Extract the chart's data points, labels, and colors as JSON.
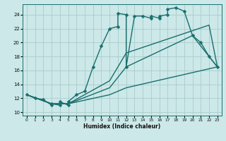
{
  "xlabel": "Humidex (Indice chaleur)",
  "bg_color": "#cce8e8",
  "line_color": "#1a6e6e",
  "grid_color": "#aacccc",
  "xlim": [
    -0.5,
    23.5
  ],
  "ylim": [
    9.5,
    25.5
  ],
  "xticks": [
    0,
    1,
    2,
    3,
    4,
    5,
    6,
    7,
    8,
    9,
    10,
    11,
    12,
    13,
    14,
    15,
    16,
    17,
    18,
    19,
    20,
    21,
    22,
    23
  ],
  "yticks": [
    10,
    12,
    14,
    16,
    18,
    20,
    22,
    24
  ],
  "series1_x": [
    0,
    1,
    2,
    3,
    3,
    4,
    4,
    5,
    5,
    6,
    7,
    8,
    9,
    10,
    11,
    11,
    12,
    12,
    13,
    14,
    15,
    15,
    16,
    16,
    17,
    17,
    18,
    19,
    20,
    21,
    22,
    23
  ],
  "series1_y": [
    12.5,
    12.0,
    11.8,
    11.0,
    11.2,
    11.0,
    11.5,
    11.0,
    11.5,
    12.5,
    13.0,
    16.5,
    19.5,
    22.0,
    22.3,
    24.2,
    24.0,
    16.5,
    23.8,
    23.8,
    23.5,
    23.8,
    23.5,
    23.8,
    24.0,
    24.8,
    25.0,
    24.5,
    21.0,
    20.0,
    18.0,
    16.5
  ],
  "series2_x": [
    0,
    3,
    5,
    10,
    12,
    22,
    23
  ],
  "series2_y": [
    12.5,
    11.2,
    11.2,
    14.5,
    18.5,
    22.5,
    16.5
  ],
  "series3_x": [
    0,
    3,
    5,
    10,
    12,
    20,
    23
  ],
  "series3_y": [
    12.5,
    11.2,
    11.2,
    13.5,
    16.5,
    21.0,
    16.5
  ],
  "series4_x": [
    0,
    3,
    5,
    10,
    12,
    23
  ],
  "series4_y": [
    12.5,
    11.2,
    11.2,
    12.5,
    13.5,
    16.5
  ]
}
